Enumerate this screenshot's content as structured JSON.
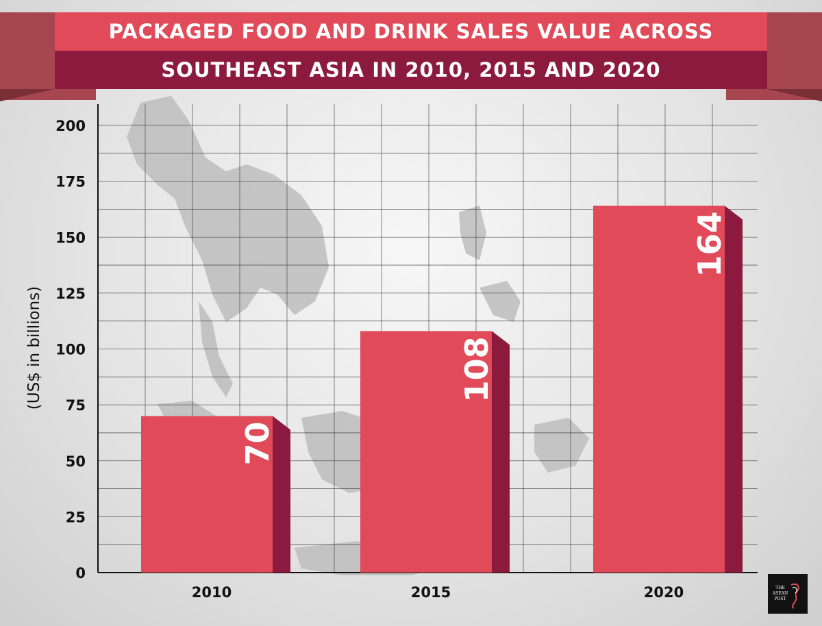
{
  "title": {
    "line1": "PACKAGED FOOD AND DRINK SALES VALUE ACROSS",
    "line2": "SOUTHEAST ASIA IN 2010, 2015 AND 2020"
  },
  "logo": {
    "icon": "the-asean-post-logo",
    "text": "THE ASEAN POST"
  },
  "colors": {
    "bar_front": "#e04a59",
    "bar_side": "#8c1a3e",
    "title_top": "#e04a59",
    "title_bottom": "#8c1a3e"
  },
  "chart_data": {
    "type": "bar",
    "title": "PACKAGED FOOD AND DRINK SALES VALUE ACROSS SOUTHEAST ASIA IN 2010, 2015 AND 2020",
    "xlabel": "",
    "ylabel": "(US$ in billions)",
    "categories": [
      "2010",
      "2015",
      "2020"
    ],
    "values": [
      70,
      108,
      164
    ],
    "data_labels": [
      "70",
      "108",
      "164"
    ],
    "ylim": [
      0,
      200
    ],
    "yticks": [
      0,
      25,
      50,
      75,
      100,
      125,
      150,
      175,
      200
    ],
    "grid": true,
    "background": "Southeast Asia map"
  }
}
